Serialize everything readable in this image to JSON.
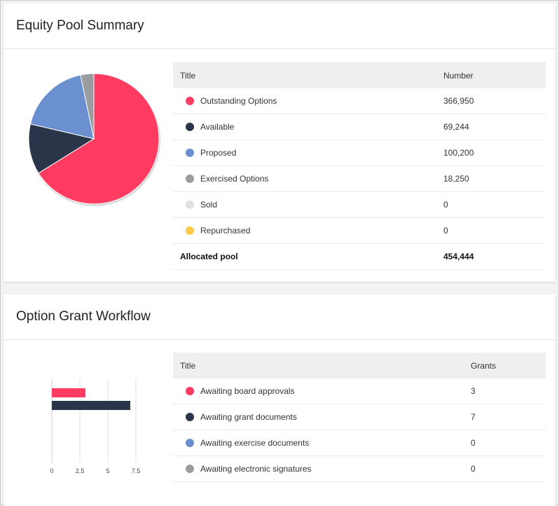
{
  "equity_pool": {
    "title": "Equity Pool Summary",
    "table": {
      "headers": [
        "Title",
        "Number"
      ],
      "rows": [
        {
          "label": "Outstanding Options",
          "value": "366,950",
          "color": "#ff3b62"
        },
        {
          "label": "Available",
          "value": "69,244",
          "color": "#2b354a"
        },
        {
          "label": "Proposed",
          "value": "100,200",
          "color": "#6b90cf"
        },
        {
          "label": "Exercised Options",
          "value": "18,250",
          "color": "#9a9ca0"
        },
        {
          "label": "Sold",
          "value": "0",
          "color": "#e1e1e1"
        },
        {
          "label": "Repurchased",
          "value": "0",
          "color": "#ffc94b"
        }
      ],
      "total_label": "Allocated pool",
      "total_value": "454,444"
    }
  },
  "option_grant": {
    "title": "Option Grant Workflow",
    "table": {
      "headers": [
        "Title",
        "Grants"
      ],
      "rows": [
        {
          "label": "Awaiting board approvals",
          "value": "3",
          "color": "#ff3b62"
        },
        {
          "label": "Awaiting grant documents",
          "value": "7",
          "color": "#2b354a"
        },
        {
          "label": "Awaiting exercise documents",
          "value": "0",
          "color": "#6b90cf"
        },
        {
          "label": "Awaiting electronic signatures",
          "value": "0",
          "color": "#9a9ca0"
        }
      ]
    }
  },
  "chart_data": [
    {
      "type": "pie",
      "categories": [
        "Outstanding Options",
        "Available",
        "Proposed",
        "Exercised Options",
        "Sold",
        "Repurchased"
      ],
      "values": [
        366950,
        69244,
        100200,
        18250,
        0,
        0
      ],
      "colors": [
        "#ff3b62",
        "#2b354a",
        "#6b90cf",
        "#9a9ca0",
        "#e1e1e1",
        "#ffc94b"
      ],
      "title": ""
    },
    {
      "type": "bar",
      "orientation": "horizontal",
      "categories": [
        "Awaiting board approvals",
        "Awaiting grant documents"
      ],
      "values": [
        3,
        7
      ],
      "colors": [
        "#ff3b62",
        "#2b354a"
      ],
      "xlim": [
        0,
        7.5
      ],
      "x_ticks": [
        "0",
        "2.5",
        "5",
        "7.5"
      ],
      "grid": true,
      "title": ""
    }
  ]
}
